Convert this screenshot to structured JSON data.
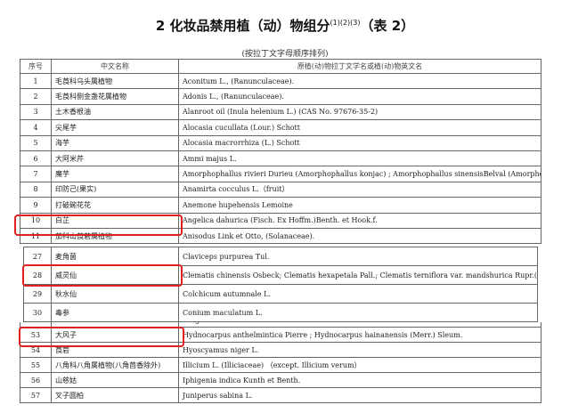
{
  "title": "2 化妆品禁用植（动）物组分",
  "title_sup": "(1)(2)(3)",
  "title_suffix": "（表 2）",
  "subtitle": "(按拉丁文字母顺序排列)",
  "headers": [
    "序号",
    "中文名称",
    "原植(动)物拉丁文学名或植(动)物英文名"
  ],
  "rows_a": [
    {
      "no": "1",
      "cn": "毛莨科乌头属植物",
      "en": "Aconitum L., (Ranunculaceae)."
    },
    {
      "no": "2",
      "cn": "毛莨科侧金盏花属植物",
      "en": "Adonis L., (Ranunculaceae)."
    },
    {
      "no": "3",
      "cn": "土木香根油",
      "en": "Alanroot oil (Inula helenium L.) (CAS No. 97676-35-2)"
    },
    {
      "no": "4",
      "cn": "尖尾芋",
      "en": "Alocasia cucullata (Lour.) Schott"
    },
    {
      "no": "5",
      "cn": "海芋",
      "en": "Alocasia macrorrhiza (L.) Schott"
    },
    {
      "no": "6",
      "cn": "大阿米芹",
      "en": "Ammi majus L."
    },
    {
      "no": "7",
      "cn": "魔芋",
      "en": "Amorphophallus rivieri Durieu (Amorphophallus konjac) ;  Amorphophallus sinensisBelval (Amorphophallus kiusianus)"
    },
    {
      "no": "8",
      "cn": "印防己(果实)",
      "en": "Anamirta cocculus L.（fruit）"
    },
    {
      "no": "9",
      "cn": "打破碗花花",
      "en": "Anemone hupehensis Lemoine"
    },
    {
      "no": "10",
      "cn": "白芷",
      "en": "Angelica dahurica (Fisch. Ex Hoffm.)Benth. et Hook.f."
    },
    {
      "no": "11",
      "cn": "茄科山莨菪属植物",
      "en": "Anisodus Link et Otto, (Solanaceae)."
    }
  ],
  "rows_b": [
    {
      "no": "27",
      "cn": "麦角菌",
      "en": "Claviceps purpurea Tul."
    },
    {
      "no": "28",
      "cn": "威灵仙",
      "en": "Clematis chinensis Osbeck; Clematis hexapetala Pall.; Clematis terniflora var. mandshurica Rupr.( Clematis mandshurica Rupr.)"
    },
    {
      "no": "29",
      "cn": "秋水仙",
      "en": "Colchicum autumnale L."
    },
    {
      "no": "30",
      "cn": "毒参",
      "en": "Conium maculatum L."
    }
  ],
  "rows_c": [
    {
      "no": "52",
      "cn": "",
      "en": "sanguinea De Geer."
    },
    {
      "no": "53",
      "cn": "大风子",
      "en": "Hydnocarpus anthelmintica Pierre ; Hydnocarpus hainanensis (Merr.) Sleum."
    },
    {
      "no": "54",
      "cn": "莨菪",
      "en": "Hyoscyamus niger L."
    },
    {
      "no": "55",
      "cn": "八角科八角属植物(八角茴香除外)",
      "en": "Illicium L. (Illiciaceae)  （except. Illicium verum）"
    },
    {
      "no": "56",
      "cn": "山慈姑",
      "en": "Iphigenia indica Kunth et Benth."
    },
    {
      "no": "57",
      "cn": "叉子圆柏",
      "en": "Juniperus sabina L."
    }
  ],
  "highlight_color": "#e02020"
}
